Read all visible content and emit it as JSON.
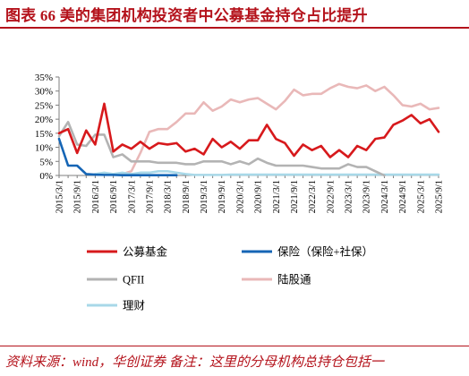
{
  "header": {
    "title": "图表 66 美的集团机构投资者中公募基金持仓占比提升"
  },
  "footer": {
    "source": "资料来源：wind，华创证券  备注：这里的分母机构总持仓包括一"
  },
  "chart_data": {
    "type": "line",
    "title": "",
    "xlabel": "",
    "ylabel": "",
    "ylim": [
      0,
      35
    ],
    "yticks": [
      "0%",
      "5%",
      "10%",
      "15%",
      "20%",
      "25%",
      "30%",
      "35%"
    ],
    "x_tick_labels": [
      "2015/3/1",
      "2015/9/1",
      "2016/3/1",
      "2016/9/1",
      "2017/3/1",
      "2017/9/1",
      "2018/3/1",
      "2018/9/1",
      "2019/3/1",
      "2019/9/1",
      "2020/3/1",
      "2020/9/1",
      "2021/3/1",
      "2021/9/1",
      "2022/3/1",
      "2022/9/1",
      "2023/3/1",
      "2023/9/1",
      "2024/3/1",
      "2024/9/1",
      "2025/3/1",
      "2025/9/1"
    ],
    "x": [
      "2015Q1",
      "2015Q2",
      "2015Q3",
      "2015Q4",
      "2016Q1",
      "2016Q2",
      "2016Q3",
      "2016Q4",
      "2017Q1",
      "2017Q2",
      "2017Q3",
      "2017Q4",
      "2018Q1",
      "2018Q2",
      "2018Q3",
      "2018Q4",
      "2019Q1",
      "2019Q2",
      "2019Q3",
      "2019Q4",
      "2020Q1",
      "2020Q2",
      "2020Q3",
      "2020Q4",
      "2021Q1",
      "2021Q2",
      "2021Q3",
      "2021Q4",
      "2022Q1",
      "2022Q2",
      "2022Q3",
      "2022Q4",
      "2023Q1",
      "2023Q2",
      "2023Q3",
      "2023Q4",
      "2024Q1",
      "2024Q2",
      "2024Q3",
      "2024Q4",
      "2025Q1",
      "2025Q2",
      "2025Q3"
    ],
    "legend": [
      "公募基金",
      "保险（保险+社保）",
      "QFII",
      "陆股通",
      "理财"
    ],
    "legend_position": "bottom",
    "grid": false,
    "series": [
      {
        "name": "公募基金",
        "color": "#d7191c",
        "width": 2.6,
        "values": [
          15.0,
          16.5,
          8.0,
          16.0,
          11.0,
          25.5,
          8.5,
          11.0,
          9.5,
          12.0,
          9.5,
          11.5,
          11.0,
          11.5,
          8.5,
          9.5,
          7.5,
          13.0,
          10.0,
          12.0,
          9.5,
          12.5,
          12.5,
          18.0,
          13.0,
          11.5,
          7.0,
          11.0,
          9.0,
          10.5,
          6.5,
          9.0,
          6.5,
          10.5,
          9.0,
          13.0,
          13.5,
          18.0,
          19.5,
          21.5,
          18.5,
          20.0,
          15.5
        ]
      },
      {
        "name": "保险（保险+社保）",
        "color": "#1565b5",
        "width": 2.6,
        "values": [
          13.0,
          3.5,
          3.5,
          0.5,
          0.3,
          0.2,
          0.2,
          0.1,
          0.1,
          0.1,
          0.1,
          0.1,
          0.1,
          0.1,
          null,
          null,
          null,
          null,
          null,
          null,
          null,
          null,
          null,
          null,
          null,
          null,
          null,
          null,
          null,
          null,
          null,
          null,
          null,
          null,
          null,
          null,
          null,
          null,
          null,
          null,
          null,
          null,
          null
        ]
      },
      {
        "name": "QFII",
        "color": "#b3b3b3",
        "width": 2.6,
        "values": [
          14.0,
          19.0,
          11.0,
          10.5,
          14.5,
          14.5,
          6.5,
          7.5,
          5.0,
          5.0,
          5.0,
          4.5,
          4.5,
          4.5,
          4.0,
          4.0,
          5.0,
          5.0,
          5.0,
          4.0,
          5.0,
          4.0,
          6.0,
          4.5,
          3.5,
          3.5,
          3.5,
          3.5,
          3.0,
          2.5,
          2.5,
          2.5,
          4.0,
          3.0,
          3.0,
          1.5,
          0.0,
          null,
          null,
          null,
          null,
          null,
          null
        ]
      },
      {
        "name": "陆股通",
        "color": "#e9b8b8",
        "width": 2.6,
        "values": [
          null,
          null,
          null,
          null,
          null,
          null,
          null,
          0.5,
          1.5,
          8.0,
          15.5,
          16.5,
          16.5,
          19.0,
          22.0,
          22.0,
          26.0,
          23.0,
          24.5,
          27.0,
          26.0,
          27.0,
          27.5,
          25.5,
          23.5,
          26.5,
          30.5,
          28.5,
          29.0,
          29.0,
          31.0,
          32.5,
          31.5,
          31.0,
          32.0,
          30.0,
          31.5,
          28.5,
          25.0,
          24.5,
          25.5,
          23.5,
          24.0
        ]
      },
      {
        "name": "理财",
        "color": "#a8d8e8",
        "width": 2.6,
        "values": [
          null,
          null,
          null,
          null,
          0.5,
          1.0,
          0.5,
          1.0,
          0.5,
          1.0,
          1.0,
          1.5,
          1.5,
          1.0,
          0.5,
          0.2,
          0.2,
          0.2,
          0.2,
          0.3,
          0.3,
          0.3,
          0.3,
          0.3,
          0.3,
          0.3,
          0.3,
          0.3,
          0.3,
          0.3,
          0.3,
          0.3,
          0.3,
          0.3,
          0.3,
          0.3,
          0.3,
          0.3,
          0.3,
          0.3,
          0.3,
          0.3,
          0.3
        ]
      }
    ]
  }
}
